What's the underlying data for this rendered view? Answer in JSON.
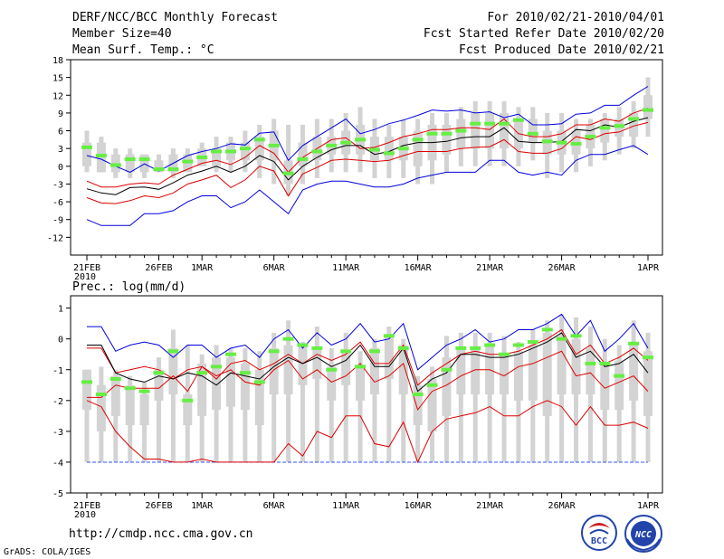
{
  "header": {
    "title": "DERF/NCC/BCC Monthly Forecast",
    "member_size": "Member Size=40",
    "variable": "Mean Surf. Temp.: °C",
    "period": "For 2010/02/21-2010/04/01",
    "start": "Fcst Started Refer Date 2010/02/20",
    "produced": "Fcst Produced Date 2010/02/21"
  },
  "footer": {
    "url": "http://cmdp.ncc.cma.gov.cn",
    "grads": "GrADS: COLA/IGES",
    "logo1": "BCC",
    "logo2": "NCC"
  },
  "colors": {
    "box": "#d3d3d3",
    "median": "#66ee44",
    "mean": "#000000",
    "red": "#dd0000",
    "blue": "#0000dd",
    "floor": "#3355ff"
  },
  "chart_data": [
    {
      "type": "box",
      "title": "Mean Surf. Temp.: °C",
      "ylim": [
        -15,
        18
      ],
      "yticks": [
        -12,
        -9,
        -6,
        -3,
        0,
        3,
        6,
        9,
        12,
        15,
        18
      ],
      "x_tick_labels": [
        {
          "label": "21FEB",
          "day": 0,
          "sub": "2010"
        },
        {
          "label": "26FEB",
          "day": 5
        },
        {
          "label": "1MAR",
          "day": 8
        },
        {
          "label": "6MAR",
          "day": 13
        },
        {
          "label": "11MAR",
          "day": 18
        },
        {
          "label": "16MAR",
          "day": 23
        },
        {
          "label": "21MAR",
          "day": 28
        },
        {
          "label": "26MAR",
          "day": 33
        },
        {
          "label": "1APR",
          "day": 39
        }
      ],
      "box_low": [
        -1,
        -1,
        -2,
        -2,
        -2,
        -1,
        -2,
        -1,
        0,
        -1,
        -1,
        -1,
        -2,
        -3,
        -5,
        -3,
        -2,
        -1,
        -1,
        -1,
        -2,
        -2,
        -2,
        -3,
        -3,
        -1,
        0,
        0,
        0,
        0,
        0,
        1,
        -2,
        -1,
        -1,
        0,
        1,
        2,
        3,
        5
      ],
      "box_high": [
        6,
        5,
        3,
        3,
        2,
        2,
        3,
        3,
        4,
        5,
        5,
        6,
        7,
        8,
        7,
        7,
        8,
        8,
        9,
        10,
        8,
        7,
        8,
        8,
        9,
        9,
        10,
        11,
        11,
        11,
        10,
        10,
        9,
        9,
        8,
        8,
        9,
        10,
        11,
        15
      ],
      "iqr_low": [
        0,
        -1,
        -1,
        -1,
        -1,
        -1,
        -1,
        -1,
        0,
        0,
        1,
        1,
        1,
        1,
        -3,
        0,
        1,
        2,
        2,
        2,
        1,
        1,
        1,
        0,
        1,
        2,
        3,
        3,
        3,
        3,
        3,
        4,
        2,
        2,
        2,
        3,
        4,
        5,
        5,
        8
      ],
      "iqr_high": [
        4,
        4,
        2,
        2,
        2,
        1,
        2,
        2,
        3,
        3,
        4,
        4,
        5,
        6,
        1,
        4,
        5,
        5,
        6,
        7,
        5,
        5,
        5,
        6,
        7,
        7,
        8,
        9,
        9,
        9,
        8,
        8,
        6,
        6,
        6,
        7,
        8,
        8,
        9,
        12
      ],
      "median": [
        3.2,
        1.8,
        0.2,
        1.2,
        1.2,
        -0.5,
        -0.5,
        0.8,
        1.5,
        2.5,
        2.5,
        3.0,
        4.5,
        3.5,
        -1.2,
        1.2,
        2.5,
        3.5,
        4.0,
        4.5,
        2.8,
        2.2,
        3.0,
        4.5,
        5.5,
        5.5,
        6.0,
        7.2,
        7.2,
        7.2,
        7.8,
        5.5,
        4.2,
        4.0,
        3.8,
        5.0,
        6.5,
        6.8,
        8.0,
        9.5
      ],
      "series": [
        {
          "name": "max",
          "color": "#0000dd",
          "values": [
            1.8,
            1.2,
            0.0,
            -1.0,
            0.4,
            -0.8,
            0.5,
            1.8,
            2.5,
            3.0,
            3.8,
            3.6,
            5.6,
            5.8,
            1.0,
            3.5,
            5.0,
            6.5,
            8.0,
            5.5,
            6.2,
            7.2,
            7.8,
            8.6,
            9.5,
            9.3,
            9.5,
            9.0,
            9.2,
            8.2,
            8.8,
            7.0,
            7.0,
            7.2,
            8.8,
            9.0,
            10.3,
            10.3,
            12.0,
            13.5
          ]
        },
        {
          "name": "upper",
          "color": "#dd0000",
          "values": [
            -2.5,
            -3.5,
            -3.5,
            -3.0,
            -2.8,
            -3.0,
            -1.5,
            -0.5,
            0.5,
            1.0,
            0.3,
            1.5,
            3.5,
            2.2,
            -1.0,
            1.5,
            3.0,
            4.5,
            4.8,
            3.0,
            3.2,
            4.0,
            5.0,
            5.5,
            6.2,
            6.2,
            6.5,
            6.5,
            6.2,
            8.0,
            5.5,
            5.0,
            5.0,
            5.5,
            7.0,
            7.0,
            8.0,
            7.6,
            9.0,
            9.8
          ]
        },
        {
          "name": "mean",
          "color": "#000000",
          "values": [
            -3.8,
            -4.5,
            -4.8,
            -3.6,
            -3.5,
            -3.9,
            -2.8,
            -1.5,
            -0.8,
            0.0,
            -1.0,
            0.0,
            1.8,
            0.8,
            -2.3,
            0.0,
            1.5,
            2.8,
            3.5,
            3.5,
            2.0,
            2.5,
            3.5,
            4.0,
            4.0,
            4.2,
            4.8,
            5.0,
            5.0,
            6.5,
            4.2,
            4.0,
            4.0,
            4.2,
            6.2,
            6.0,
            7.0,
            6.6,
            7.6,
            8.2
          ]
        },
        {
          "name": "lower",
          "color": "#dd0000",
          "values": [
            -5.3,
            -6.2,
            -6.3,
            -5.8,
            -5.0,
            -5.3,
            -4.5,
            -3.0,
            -2.3,
            -1.5,
            -3.6,
            -2.3,
            0.0,
            -0.8,
            -5.0,
            -1.3,
            -0.2,
            1.0,
            1.2,
            1.0,
            0.8,
            1.0,
            1.8,
            2.5,
            2.5,
            2.5,
            3.0,
            3.2,
            3.3,
            4.5,
            2.5,
            2.2,
            2.2,
            3.0,
            5.0,
            4.5,
            5.5,
            5.8,
            6.8,
            7.4
          ]
        },
        {
          "name": "min",
          "color": "#0000dd",
          "values": [
            -9.0,
            -10.0,
            -10.0,
            -10.0,
            -8.0,
            -8.0,
            -7.5,
            -6.0,
            -5.0,
            -5.0,
            -7.0,
            -6.0,
            -4.0,
            -6.0,
            -8.0,
            -4.0,
            -3.0,
            -2.5,
            -2.5,
            -3.0,
            -3.5,
            -3.5,
            -3.0,
            -2.0,
            -1.5,
            -1.0,
            -1.0,
            -1.0,
            1.0,
            1.0,
            -1.0,
            -1.5,
            -1.0,
            -1.5,
            1.0,
            2.0,
            2.0,
            2.8,
            3.5,
            2.0
          ]
        }
      ]
    },
    {
      "type": "box",
      "title": "Prec.: log(mm/d)",
      "ylim": [
        -5,
        1.4
      ],
      "yticks": [
        -5,
        -4,
        -3,
        -2,
        -1,
        0,
        1
      ],
      "x_tick_labels": [
        {
          "label": "21FEB",
          "day": 0,
          "sub": "2010"
        },
        {
          "label": "26FEB",
          "day": 5
        },
        {
          "label": "1MAR",
          "day": 8
        },
        {
          "label": "6MAR",
          "day": 13
        },
        {
          "label": "11MAR",
          "day": 18
        },
        {
          "label": "16MAR",
          "day": 23
        },
        {
          "label": "21MAR",
          "day": 28
        },
        {
          "label": "26MAR",
          "day": 33
        },
        {
          "label": "1APR",
          "day": 39
        }
      ],
      "floor": -4,
      "box_low": [
        -4,
        -4,
        -4,
        -4,
        -4,
        -4,
        -4,
        -4,
        -4,
        -4,
        -4,
        -4,
        -4,
        -4,
        -4,
        -4,
        -4,
        -4,
        -4,
        -4,
        -4,
        -4,
        -4,
        -4,
        -4,
        -4,
        -4,
        -4,
        -4,
        -4,
        -4,
        -4,
        -4,
        -4,
        -4,
        -4,
        -4,
        -4,
        -4,
        -4
      ],
      "box_high": [
        -1.0,
        -0.9,
        -1.0,
        -1.2,
        -1.4,
        -0.6,
        0.3,
        -0.2,
        -0.5,
        -0.2,
        -0.3,
        -0.3,
        -0.4,
        0.2,
        0.6,
        -0.1,
        0.4,
        -0.3,
        0.2,
        -0.4,
        0.0,
        0.4,
        0.0,
        -1.2,
        -0.9,
        0.1,
        0.2,
        0.2,
        0.2,
        0.1,
        -0.1,
        0.3,
        0.6,
        0.8,
        0.7,
        0.4,
        0.0,
        -0.2,
        0.6,
        0.2
      ],
      "iqr_low": [
        -2.3,
        -3.0,
        -2.5,
        -2.8,
        -2.8,
        -2.0,
        -1.8,
        -2.8,
        -2.5,
        -2.3,
        -2.2,
        -2.3,
        -2.8,
        -1.8,
        -1.8,
        -1.5,
        -1.3,
        -2.0,
        -1.5,
        -2.0,
        -1.8,
        -1.3,
        -1.8,
        -2.8,
        -3.0,
        -2.5,
        -1.8,
        -1.8,
        -1.8,
        -1.8,
        -2.0,
        -2.0,
        -2.5,
        -1.8,
        -1.8,
        -1.8,
        -2.3,
        -2.3,
        -2.0,
        -2.5
      ],
      "iqr_high": [
        -1.0,
        -1.5,
        -1.2,
        -1.5,
        -1.8,
        -1.0,
        -0.3,
        -1.8,
        -0.8,
        -0.6,
        -0.6,
        -0.8,
        -1.0,
        -0.3,
        -0.2,
        -0.2,
        -0.3,
        -0.9,
        -0.4,
        -0.9,
        -0.3,
        0.1,
        -0.2,
        -1.5,
        -1.3,
        -0.6,
        -0.3,
        -0.3,
        -0.2,
        -0.5,
        -0.4,
        -0.2,
        0.2,
        0.1,
        0.0,
        -0.3,
        -0.8,
        -0.7,
        -0.2,
        -0.4
      ],
      "median": [
        -1.4,
        -1.8,
        -1.3,
        -1.6,
        -1.7,
        -1.1,
        -0.4,
        -2.0,
        -1.1,
        -0.9,
        -0.5,
        -1.1,
        -1.4,
        -0.4,
        0.0,
        -0.2,
        -0.3,
        -1.0,
        -0.4,
        -0.9,
        -0.4,
        0.1,
        -0.3,
        -1.8,
        -1.5,
        -1.0,
        -0.3,
        -0.3,
        -0.2,
        -0.5,
        -0.2,
        -0.1,
        0.3,
        0.0,
        0.1,
        -0.8,
        -0.8,
        -1.2,
        -0.15,
        -0.6
      ],
      "series": [
        {
          "name": "max",
          "color": "#0000dd",
          "values": [
            0.4,
            0.4,
            -0.4,
            -0.2,
            -0.1,
            -0.2,
            -0.6,
            -0.2,
            -0.2,
            -0.6,
            -0.3,
            -0.2,
            -0.6,
            0.0,
            0.3,
            -0.3,
            0.2,
            -0.2,
            0.0,
            0.5,
            -0.1,
            0.0,
            0.5,
            -1.0,
            -0.6,
            -0.2,
            0.0,
            0.3,
            -0.1,
            0.0,
            0.3,
            0.3,
            0.5,
            0.8,
            0.1,
            0.6,
            -0.4,
            0.0,
            0.5,
            -0.3
          ]
        },
        {
          "name": "upper",
          "color": "#dd0000",
          "values": [
            -0.3,
            -0.3,
            -1.1,
            -1.0,
            -0.9,
            -1.0,
            -1.3,
            -1.0,
            -0.9,
            -1.3,
            -0.8,
            -0.7,
            -1.0,
            -0.8,
            -0.5,
            -0.8,
            -0.5,
            -0.7,
            -0.5,
            -0.1,
            -0.8,
            -0.8,
            -0.2,
            -1.5,
            -1.1,
            -0.8,
            -0.5,
            -0.4,
            -0.5,
            -0.5,
            -0.4,
            -0.2,
            0.0,
            0.3,
            -0.5,
            -0.2,
            -0.8,
            -0.6,
            -0.3,
            -0.7
          ]
        },
        {
          "name": "mean",
          "color": "#000000",
          "values": [
            -0.2,
            -0.2,
            -1.1,
            -1.3,
            -1.4,
            -1.2,
            -1.3,
            -1.1,
            -1.2,
            -1.5,
            -1.1,
            -1.2,
            -1.3,
            -0.9,
            -0.6,
            -0.8,
            -0.6,
            -0.9,
            -0.7,
            -0.2,
            -0.9,
            -0.9,
            -0.3,
            -1.7,
            -1.3,
            -1.1,
            -0.5,
            -0.5,
            -0.6,
            -0.6,
            -0.5,
            -0.3,
            -0.1,
            0.2,
            -0.6,
            -0.4,
            -0.9,
            -0.8,
            -0.5,
            -1.1
          ]
        },
        {
          "name": "lower",
          "color": "#dd0000",
          "values": [
            -1.9,
            -1.9,
            -1.5,
            -1.6,
            -1.6,
            -1.6,
            -1.2,
            -1.7,
            -0.9,
            -1.2,
            -1.0,
            -1.4,
            -1.5,
            -1.0,
            -0.7,
            -1.3,
            -1.0,
            -1.4,
            -1.2,
            -0.8,
            -1.4,
            -1.2,
            -0.8,
            -2.3,
            -1.7,
            -1.5,
            -1.2,
            -1.0,
            -1.0,
            -1.2,
            -0.9,
            -0.8,
            -0.6,
            -0.4,
            -1.2,
            -1.1,
            -1.6,
            -1.4,
            -1.2,
            -1.7
          ]
        },
        {
          "name": "min",
          "color": "#dd0000",
          "values": [
            -2.0,
            -2.2,
            -3.0,
            -3.5,
            -3.9,
            -3.9,
            -4.0,
            -4.0,
            -3.9,
            -4.0,
            -4.0,
            -4.0,
            -4.0,
            -4.0,
            -3.4,
            -3.8,
            -3.0,
            -3.2,
            -2.5,
            -2.5,
            -3.4,
            -3.5,
            -2.7,
            -4.0,
            -3.0,
            -2.6,
            -2.5,
            -2.4,
            -2.2,
            -2.5,
            -2.5,
            -2.2,
            -2.0,
            -2.2,
            -2.8,
            -2.2,
            -2.8,
            -2.8,
            -2.7,
            -2.9
          ]
        }
      ]
    }
  ]
}
